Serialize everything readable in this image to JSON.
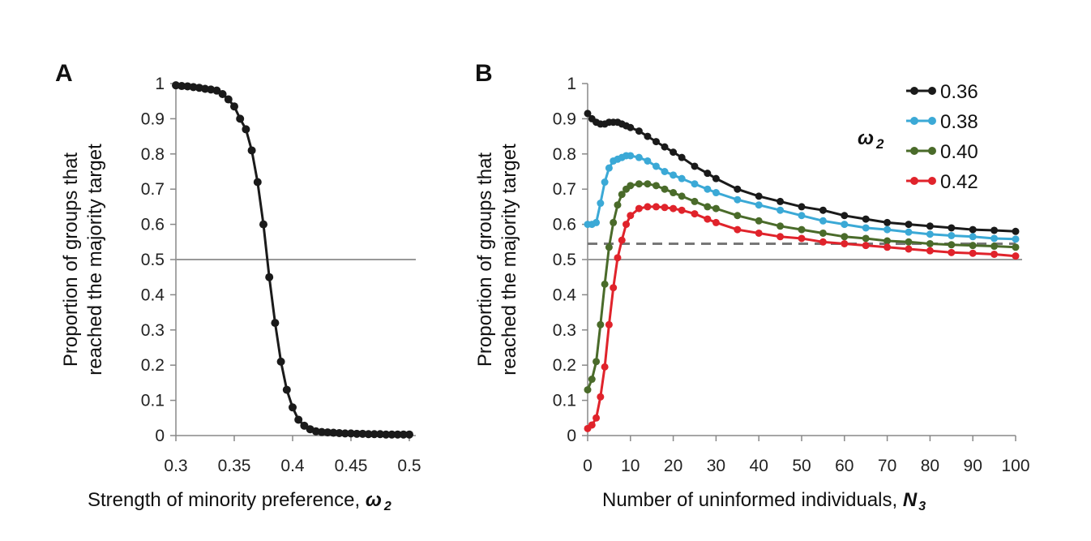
{
  "colors": {
    "s036": "#1a1a1a",
    "s038": "#3ba9d6",
    "s040": "#4a6b2a",
    "s042": "#e0232b",
    "panelA": "#1a1a1a",
    "ref_line": "#999999",
    "dashed_line": "#777777"
  },
  "chart_data": [
    {
      "panel": "A",
      "type": "line",
      "ylabel_line1": "Proportion of groups that",
      "ylabel_line2": "reached the majority target",
      "xlabel_text": "Strength of minority preference, ",
      "xlabel_symbol": "ω",
      "xlabel_sub": "2",
      "xlim": [
        0.3,
        0.5
      ],
      "ylim": [
        0,
        1
      ],
      "xticks": [
        "0.3",
        "0.35",
        "0.4",
        "0.45",
        "0.5"
      ],
      "yticks": [
        "0",
        "0.1",
        "0.2",
        "0.3",
        "0.4",
        "0.5",
        "0.6",
        "0.7",
        "0.8",
        "0.9",
        "1"
      ],
      "reference_line_y": 0.5,
      "series": [
        {
          "x": [
            0.3,
            0.305,
            0.31,
            0.315,
            0.32,
            0.325,
            0.33,
            0.335,
            0.34,
            0.345,
            0.35,
            0.355,
            0.36,
            0.365,
            0.37,
            0.375,
            0.38,
            0.385,
            0.39,
            0.395,
            0.4,
            0.405,
            0.41,
            0.415,
            0.42,
            0.425,
            0.43,
            0.435,
            0.44,
            0.445,
            0.45,
            0.455,
            0.46,
            0.465,
            0.47,
            0.475,
            0.48,
            0.485,
            0.49,
            0.495,
            0.5
          ],
          "values": [
            0.995,
            0.993,
            0.992,
            0.99,
            0.988,
            0.985,
            0.983,
            0.98,
            0.97,
            0.955,
            0.935,
            0.9,
            0.87,
            0.81,
            0.72,
            0.6,
            0.45,
            0.32,
            0.21,
            0.13,
            0.08,
            0.045,
            0.028,
            0.018,
            0.012,
            0.01,
            0.009,
            0.008,
            0.007,
            0.006,
            0.006,
            0.005,
            0.005,
            0.004,
            0.004,
            0.004,
            0.003,
            0.003,
            0.003,
            0.003,
            0.003
          ]
        }
      ]
    },
    {
      "panel": "B",
      "type": "line",
      "ylabel_line1": "Proportion of groups that",
      "ylabel_line2": "reached the majority target",
      "xlabel_text": "Number of uninformed individuals, ",
      "xlabel_symbol": "N",
      "xlabel_sub": "3",
      "xlim": [
        0,
        100
      ],
      "ylim": [
        0,
        1
      ],
      "xticks": [
        "0",
        "10",
        "20",
        "30",
        "40",
        "50",
        "60",
        "70",
        "80",
        "90",
        "100"
      ],
      "yticks": [
        "0",
        "0.1",
        "0.2",
        "0.3",
        "0.4",
        "0.5",
        "0.6",
        "0.7",
        "0.8",
        "0.9",
        "1"
      ],
      "reference_line_y": 0.5,
      "dashed_line_y": 0.545,
      "legend_title_symbol": "ω",
      "legend_title_sub": "2",
      "legend_position": "top-right",
      "series": [
        {
          "name": "0.36",
          "x": [
            0,
            1,
            2,
            3,
            4,
            5,
            6,
            7,
            8,
            9,
            10,
            12,
            14,
            16,
            18,
            20,
            22,
            25,
            28,
            30,
            35,
            40,
            45,
            50,
            55,
            60,
            65,
            70,
            75,
            80,
            85,
            90,
            95,
            100
          ],
          "values": [
            0.915,
            0.9,
            0.89,
            0.885,
            0.885,
            0.89,
            0.89,
            0.89,
            0.885,
            0.88,
            0.875,
            0.865,
            0.85,
            0.835,
            0.82,
            0.805,
            0.79,
            0.765,
            0.745,
            0.73,
            0.7,
            0.68,
            0.665,
            0.65,
            0.64,
            0.625,
            0.615,
            0.605,
            0.6,
            0.595,
            0.59,
            0.585,
            0.583,
            0.58
          ]
        },
        {
          "name": "0.38",
          "x": [
            0,
            1,
            2,
            3,
            4,
            5,
            6,
            7,
            8,
            9,
            10,
            12,
            14,
            16,
            18,
            20,
            22,
            25,
            28,
            30,
            35,
            40,
            45,
            50,
            55,
            60,
            65,
            70,
            75,
            80,
            85,
            90,
            95,
            100
          ],
          "values": [
            0.6,
            0.6,
            0.605,
            0.66,
            0.72,
            0.76,
            0.78,
            0.785,
            0.79,
            0.795,
            0.795,
            0.79,
            0.78,
            0.765,
            0.75,
            0.74,
            0.73,
            0.715,
            0.7,
            0.69,
            0.67,
            0.655,
            0.64,
            0.625,
            0.61,
            0.6,
            0.59,
            0.585,
            0.578,
            0.572,
            0.568,
            0.565,
            0.56,
            0.558
          ]
        },
        {
          "name": "0.40",
          "x": [
            0,
            1,
            2,
            3,
            4,
            5,
            6,
            7,
            8,
            9,
            10,
            12,
            14,
            16,
            18,
            20,
            22,
            25,
            28,
            30,
            35,
            40,
            45,
            50,
            55,
            60,
            65,
            70,
            75,
            80,
            85,
            90,
            95,
            100
          ],
          "values": [
            0.13,
            0.16,
            0.21,
            0.315,
            0.43,
            0.535,
            0.605,
            0.655,
            0.685,
            0.7,
            0.71,
            0.715,
            0.715,
            0.71,
            0.7,
            0.69,
            0.68,
            0.665,
            0.65,
            0.645,
            0.625,
            0.61,
            0.595,
            0.585,
            0.575,
            0.565,
            0.56,
            0.553,
            0.55,
            0.545,
            0.542,
            0.54,
            0.538,
            0.535
          ]
        },
        {
          "name": "0.42",
          "x": [
            0,
            1,
            2,
            3,
            4,
            5,
            6,
            7,
            8,
            9,
            10,
            12,
            14,
            16,
            18,
            20,
            22,
            25,
            28,
            30,
            35,
            40,
            45,
            50,
            55,
            60,
            65,
            70,
            75,
            80,
            85,
            90,
            95,
            100
          ],
          "values": [
            0.02,
            0.03,
            0.05,
            0.11,
            0.195,
            0.315,
            0.42,
            0.505,
            0.555,
            0.6,
            0.625,
            0.645,
            0.65,
            0.65,
            0.648,
            0.645,
            0.64,
            0.63,
            0.615,
            0.605,
            0.585,
            0.575,
            0.565,
            0.56,
            0.55,
            0.545,
            0.54,
            0.535,
            0.53,
            0.525,
            0.52,
            0.518,
            0.515,
            0.51
          ]
        }
      ]
    }
  ]
}
